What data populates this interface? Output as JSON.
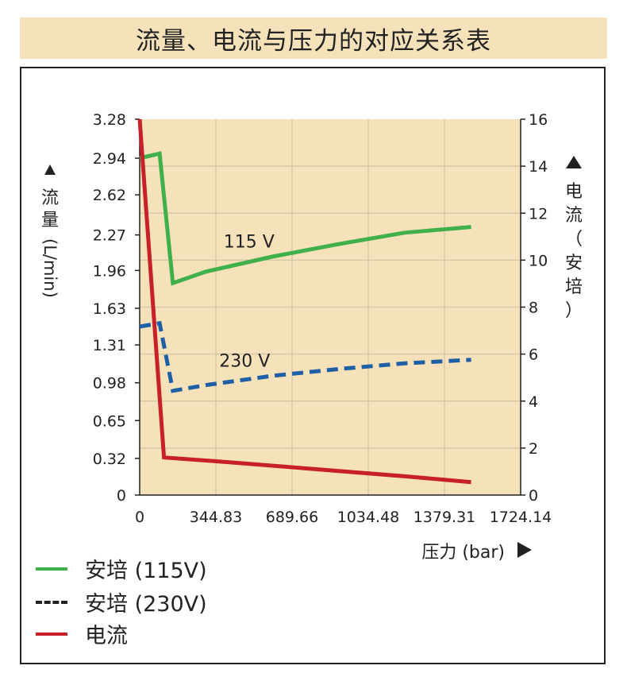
{
  "title": "流量、电流与压力的对应关系表",
  "colors": {
    "plot_bg": "#f5e2ba",
    "grid": "#d6c7a8",
    "green": "#3fb04a",
    "blue": "#1f5fa6",
    "red": "#c8202a"
  },
  "axis_labels": {
    "y_left": "流量 (L/min)",
    "y_right": "电流（安培）",
    "x": "压力 (bar)"
  },
  "legend": [
    {
      "label": "安培 (115V)",
      "style": "solid",
      "color": "#3fb04a"
    },
    {
      "label": "安培 (230V)",
      "style": "dashed",
      "color": "#1f5fa6"
    },
    {
      "label": "电流",
      "style": "solid",
      "color": "#c8202a"
    }
  ],
  "chart_data": {
    "type": "line",
    "title": "流量、电流与压力的对应关系表",
    "xlabel": "压力 (bar)",
    "ylabel": "流量 (L/min)",
    "y2label": "电流（安培）",
    "xlim": [
      0,
      1724.14
    ],
    "ylim": [
      0,
      3.28
    ],
    "y2lim": [
      0,
      16
    ],
    "x_ticks": [
      "0",
      "344.83",
      "689.66",
      "1034.48",
      "1379.31",
      "1724.14"
    ],
    "y_ticks": [
      "0",
      "0.32",
      "0.65",
      "0.98",
      "1.31",
      "1.63",
      "1.96",
      "2.27",
      "2.62",
      "2.94",
      "3.28"
    ],
    "y2_ticks": [
      "0",
      "2",
      "4",
      "6",
      "8",
      "10",
      "12",
      "14",
      "16"
    ],
    "grid": true,
    "annotations": [
      "115 V",
      "230 V"
    ],
    "series": [
      {
        "name": "安培 (115V)",
        "axis": "left",
        "style": "solid",
        "color": "#3fb04a",
        "x": [
          0,
          90,
          150,
          300,
          600,
          900,
          1200,
          1500
        ],
        "y": [
          2.94,
          2.98,
          1.85,
          1.95,
          2.08,
          2.19,
          2.29,
          2.34
        ]
      },
      {
        "name": "安培 (230V)",
        "axis": "left",
        "style": "dashed",
        "color": "#1f5fa6",
        "x": [
          0,
          90,
          150,
          300,
          600,
          900,
          1200,
          1500
        ],
        "y": [
          1.47,
          1.5,
          0.91,
          0.96,
          1.04,
          1.1,
          1.15,
          1.18
        ]
      },
      {
        "name": "电流",
        "axis": "right",
        "style": "solid",
        "color": "#c8202a",
        "x": [
          0,
          110,
          400,
          800,
          1200,
          1500
        ],
        "y": [
          16.0,
          1.6,
          1.4,
          1.1,
          0.8,
          0.55
        ]
      }
    ],
    "labels": [
      {
        "text": "115 V",
        "x": 380,
        "y": 2.16
      },
      {
        "text": "230 V",
        "x": 360,
        "y": 1.12
      }
    ]
  }
}
